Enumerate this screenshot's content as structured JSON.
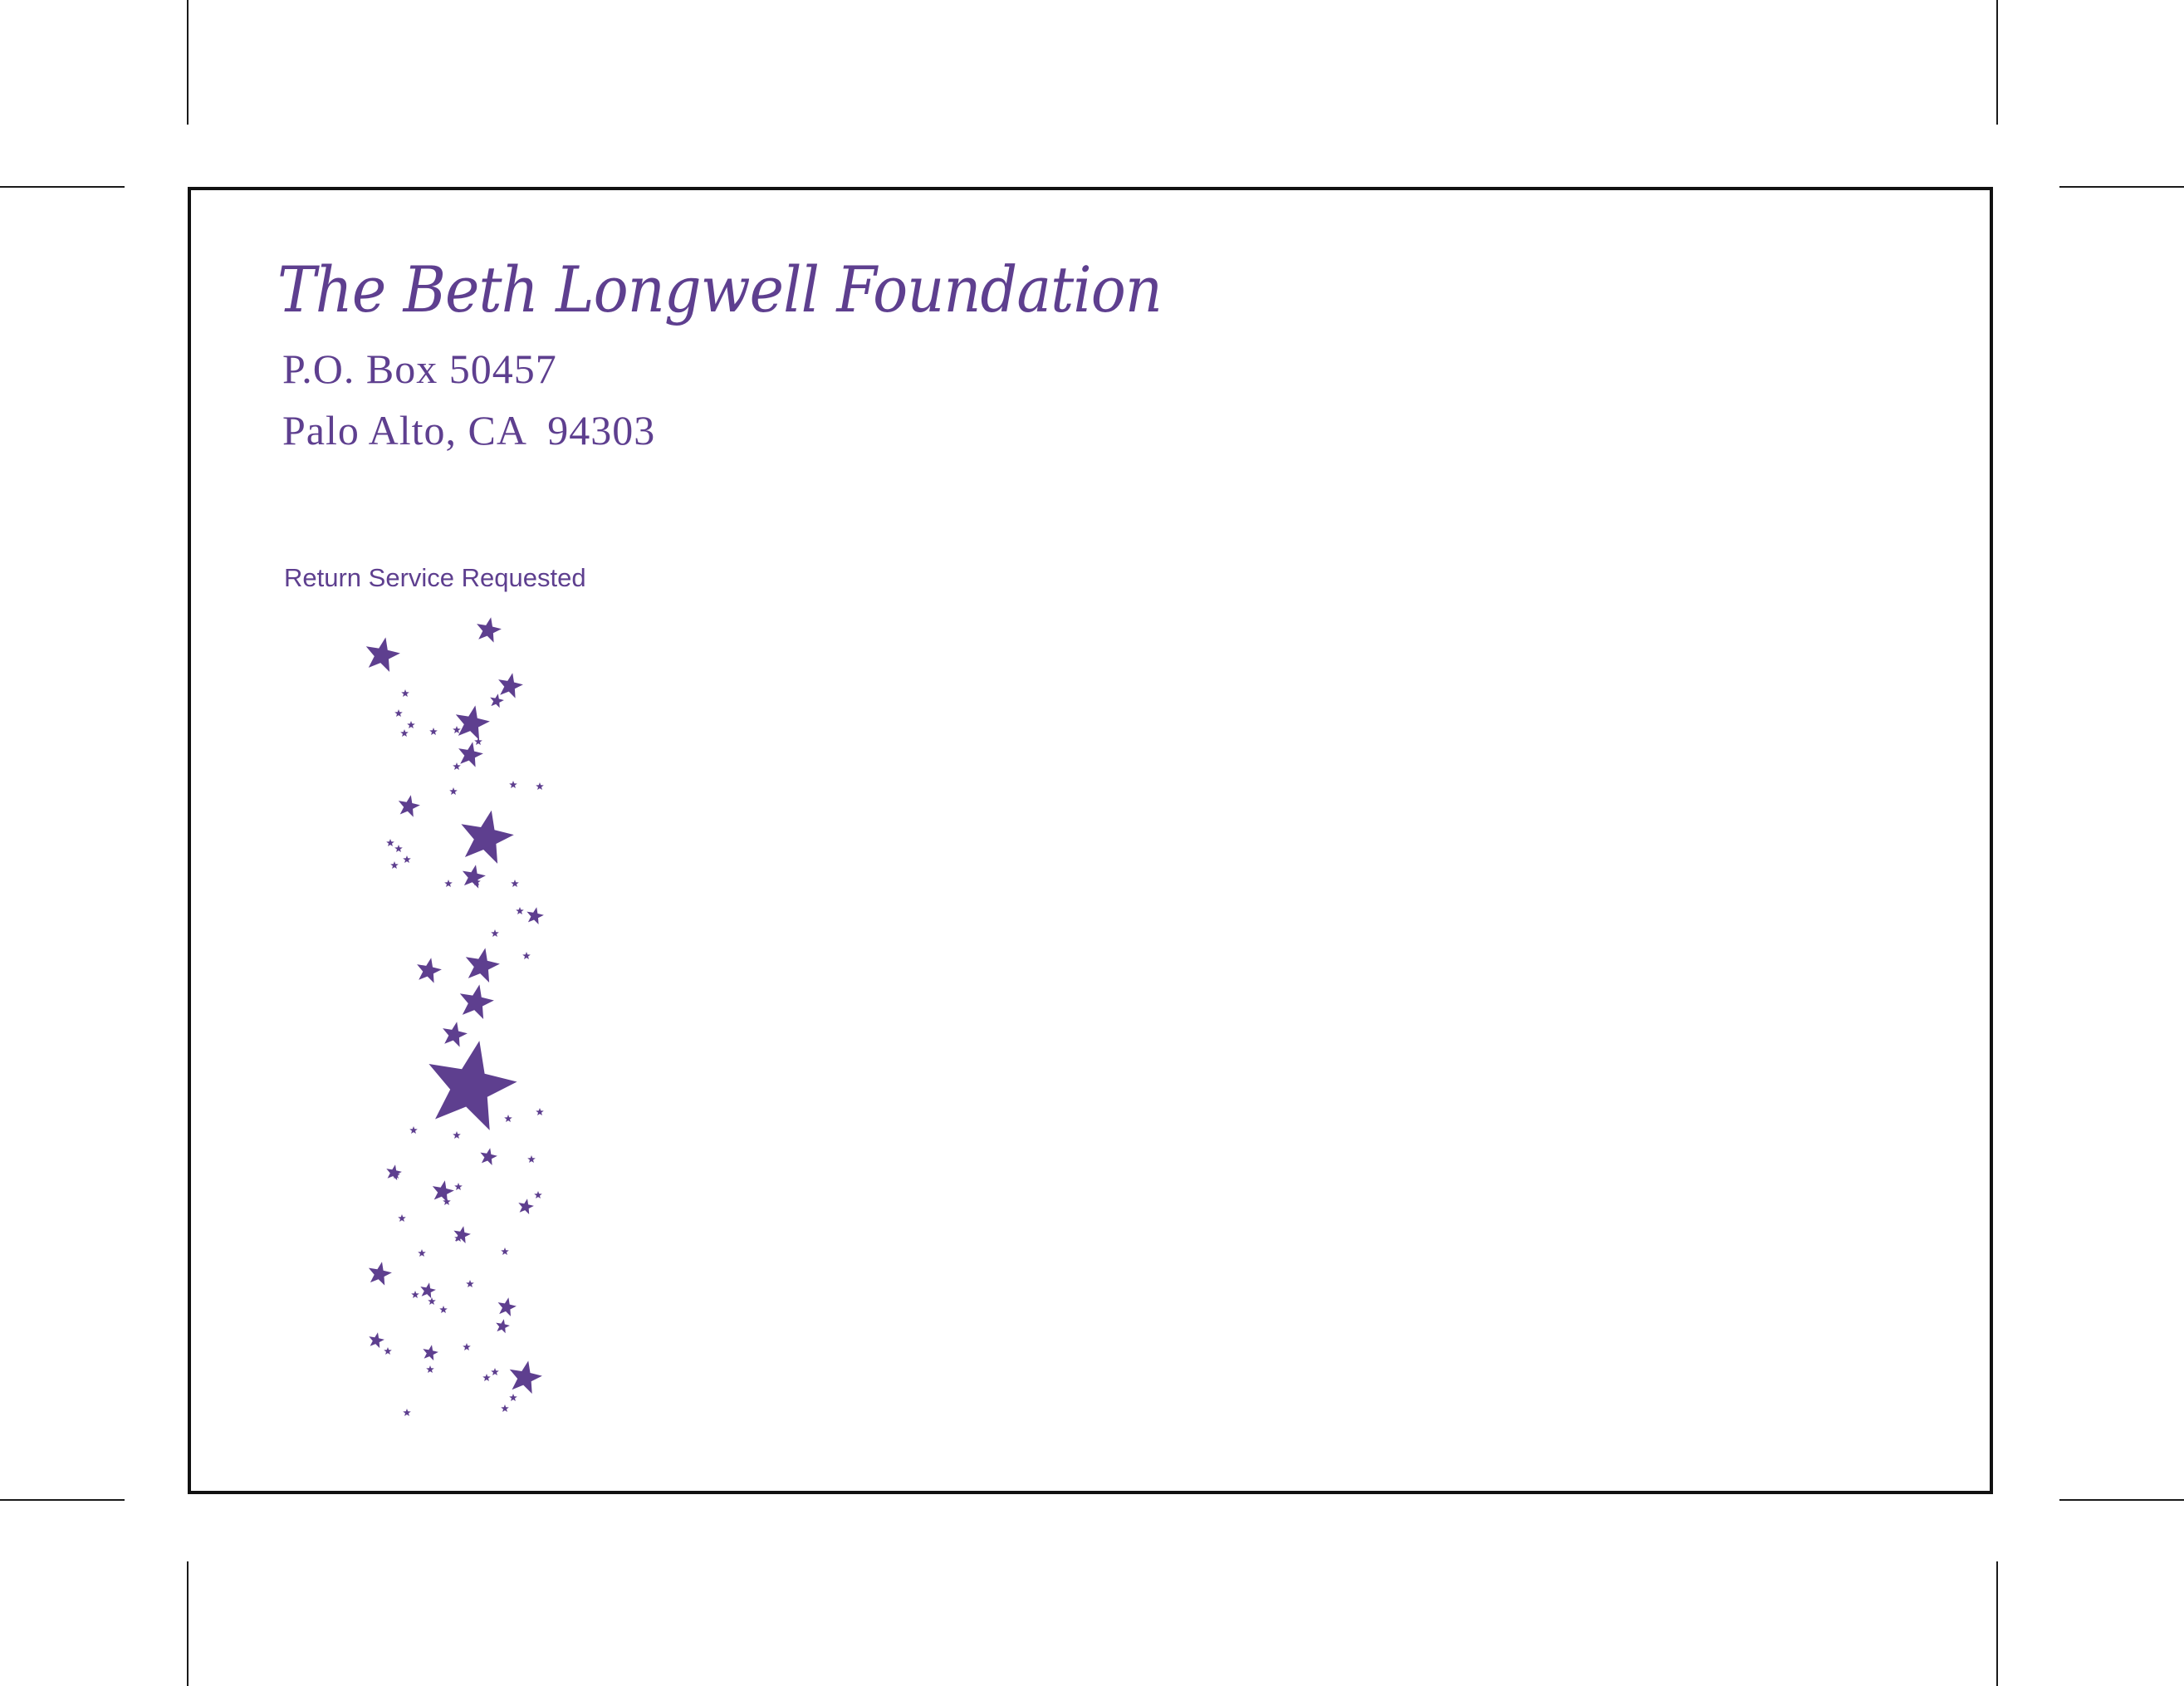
{
  "envelope": {
    "organization_name": "The Beth Longwell Foundation",
    "address_line_1": "P.O. Box 50457",
    "address_line_2": "Palo Alto, CA  94303",
    "endorsement": "Return Service Requested"
  },
  "colors": {
    "brand_purple": "#5e3f8f",
    "border": "#111111",
    "crop_marks": "#1a1a1a"
  },
  "decoration": {
    "icon": "star-cluster-icon"
  }
}
